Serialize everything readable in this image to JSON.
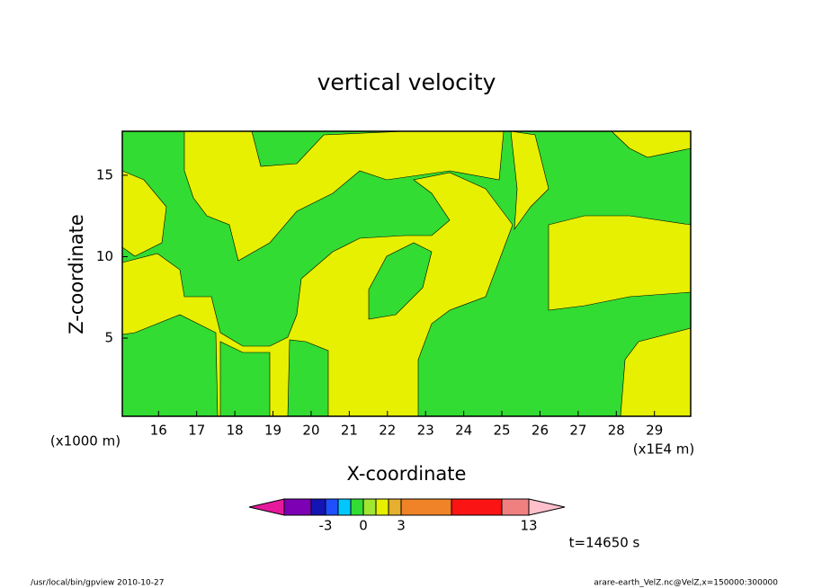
{
  "chart_data": {
    "type": "contour",
    "title": "vertical velocity",
    "x_label": "X-coordinate",
    "y_label": "Z-coordinate",
    "x_unit": "(x1000 m)",
    "x_scale": "(x1E4 m)",
    "xlim": [
      15.05,
      29.95
    ],
    "xticks": [
      16,
      17,
      18,
      19,
      20,
      21,
      22,
      23,
      24,
      25,
      26,
      27,
      28,
      29
    ],
    "ylim": [
      0.2,
      17.7
    ],
    "yticks": [
      5,
      10,
      15
    ],
    "colorbar": {
      "colors": [
        "#e6199c",
        "#7d00b4",
        "#1414b4",
        "#1e50ff",
        "#00c8ff",
        "#32dc32",
        "#a0e632",
        "#e6f000",
        "#e6af2d",
        "#f08228",
        "#fa1414",
        "#f08080",
        "#ffc0cb"
      ],
      "ticks": [
        -3,
        0,
        3,
        13
      ]
    },
    "time_label": "t=14650 s",
    "footer_left": "/usr/local/bin/gpview  2010-10-27",
    "footer_right": "arare-earth_VelZ.nc@VelZ,x=150000:300000"
  }
}
